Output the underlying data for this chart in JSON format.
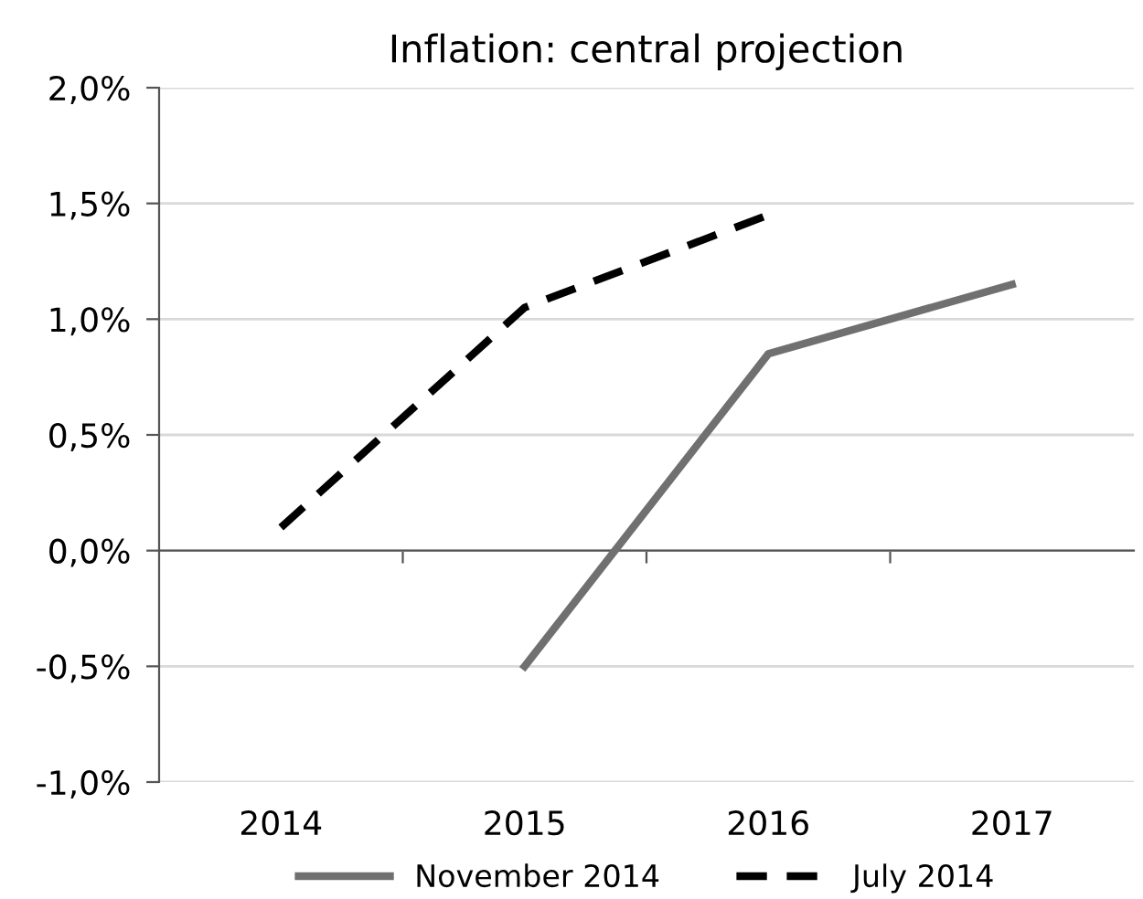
{
  "chart_data": {
    "type": "line",
    "title": "Inflation: central projection",
    "categories": [
      "2014",
      "2015",
      "2016",
      "2017"
    ],
    "series": [
      {
        "name": "November 2014",
        "color": "#707070",
        "line_style": "solid",
        "values": [
          null,
          -0.5,
          0.85,
          1.15
        ]
      },
      {
        "name": "July 2014",
        "color": "#000000",
        "line_style": "dashed",
        "values": [
          0.1,
          1.05,
          1.45,
          null
        ]
      }
    ],
    "ylim": [
      -1.0,
      2.0
    ],
    "yticks": [
      {
        "value": -1.0,
        "label": "-1,0%"
      },
      {
        "value": -0.5,
        "label": "-0,5%"
      },
      {
        "value": 0.0,
        "label": "0,0%"
      },
      {
        "value": 0.5,
        "label": "0,5%"
      },
      {
        "value": 1.0,
        "label": "1,0%"
      },
      {
        "value": 1.5,
        "label": "1,5%"
      },
      {
        "value": 2.0,
        "label": "2,0%"
      }
    ],
    "grid": "y",
    "legend": "bottom",
    "marker": "none"
  }
}
